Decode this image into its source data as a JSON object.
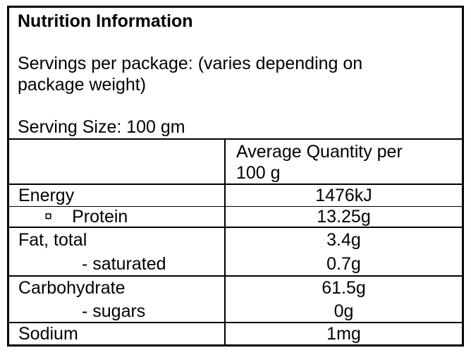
{
  "page": {
    "background_color": "#ffffff",
    "border_color": "#000000",
    "text_color": "#000000"
  },
  "header": {
    "title": "Nutrition Information",
    "servings_line1": "Servings per package: (varies depending on",
    "servings_line2": "package weight)",
    "serving_size": "Serving Size: 100 gm"
  },
  "table": {
    "value_header_line1": "Average Quantity per",
    "value_header_line2": "100 g",
    "rows": [
      {
        "label": "Energy",
        "value": "1476kJ"
      },
      {
        "bullet": "¤",
        "label": "Protein",
        "value": "13.25g"
      },
      {
        "label": "Fat, total",
        "value": "3.4g",
        "sub_label": "- saturated",
        "sub_value": "0.7g"
      },
      {
        "label": "Carbohydrate",
        "value": "61.5g",
        "sub_label": "- sugars",
        "sub_value": "0g"
      },
      {
        "label": "Sodium",
        "value": "1mg"
      }
    ]
  }
}
